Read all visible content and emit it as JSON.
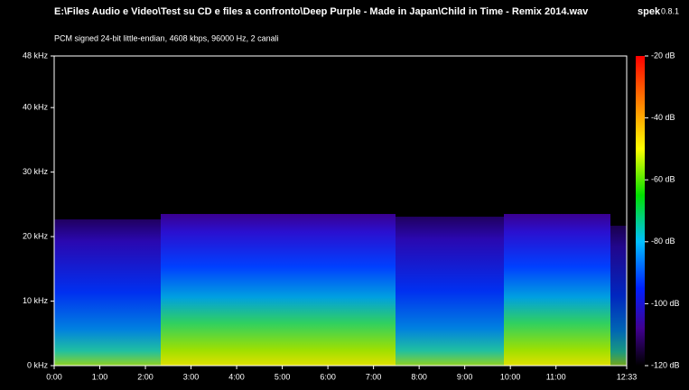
{
  "chart_data": {
    "type": "spectrogram",
    "title": "E:\\Files Audio e Video\\Test su CD e files a confronto\\Deep Purple - Made in Japan\\Child in Time - Remix 2014.wav",
    "subtitle": "PCM signed 24-bit little-endian, 4608 kbps, 96000 Hz, 2 canali",
    "app_name": "spek",
    "app_version": "0.8.1",
    "xlim": [
      0,
      753
    ],
    "xticks": [
      {
        "value": 0,
        "label": "0:00"
      },
      {
        "value": 60,
        "label": "1:00"
      },
      {
        "value": 120,
        "label": "2:00"
      },
      {
        "value": 180,
        "label": "3:00"
      },
      {
        "value": 240,
        "label": "4:00"
      },
      {
        "value": 300,
        "label": "5:00"
      },
      {
        "value": 360,
        "label": "6:00"
      },
      {
        "value": 420,
        "label": "7:00"
      },
      {
        "value": 480,
        "label": "8:00"
      },
      {
        "value": 540,
        "label": "9:00"
      },
      {
        "value": 600,
        "label": "10:00"
      },
      {
        "value": 660,
        "label": "11:00"
      },
      {
        "value": 753,
        "label": "12:33"
      }
    ],
    "ylim": [
      0,
      48
    ],
    "yticks": [
      {
        "value": 0,
        "label": "0 kHz"
      },
      {
        "value": 10,
        "label": "10 kHz"
      },
      {
        "value": 20,
        "label": "20 kHz"
      },
      {
        "value": 30,
        "label": "30 kHz"
      },
      {
        "value": 40,
        "label": "40 kHz"
      },
      {
        "value": 48,
        "label": "48 kHz"
      }
    ],
    "colorbar_lim": [
      -120,
      -20
    ],
    "colorbar_ticks": [
      {
        "value": -20,
        "label": "-20 dB"
      },
      {
        "value": -40,
        "label": "-40 dB"
      },
      {
        "value": -60,
        "label": "-60 dB"
      },
      {
        "value": -80,
        "label": "-80 dB"
      },
      {
        "value": -100,
        "label": "-100 dB"
      },
      {
        "value": -120,
        "label": "-120 dB"
      }
    ]
  }
}
